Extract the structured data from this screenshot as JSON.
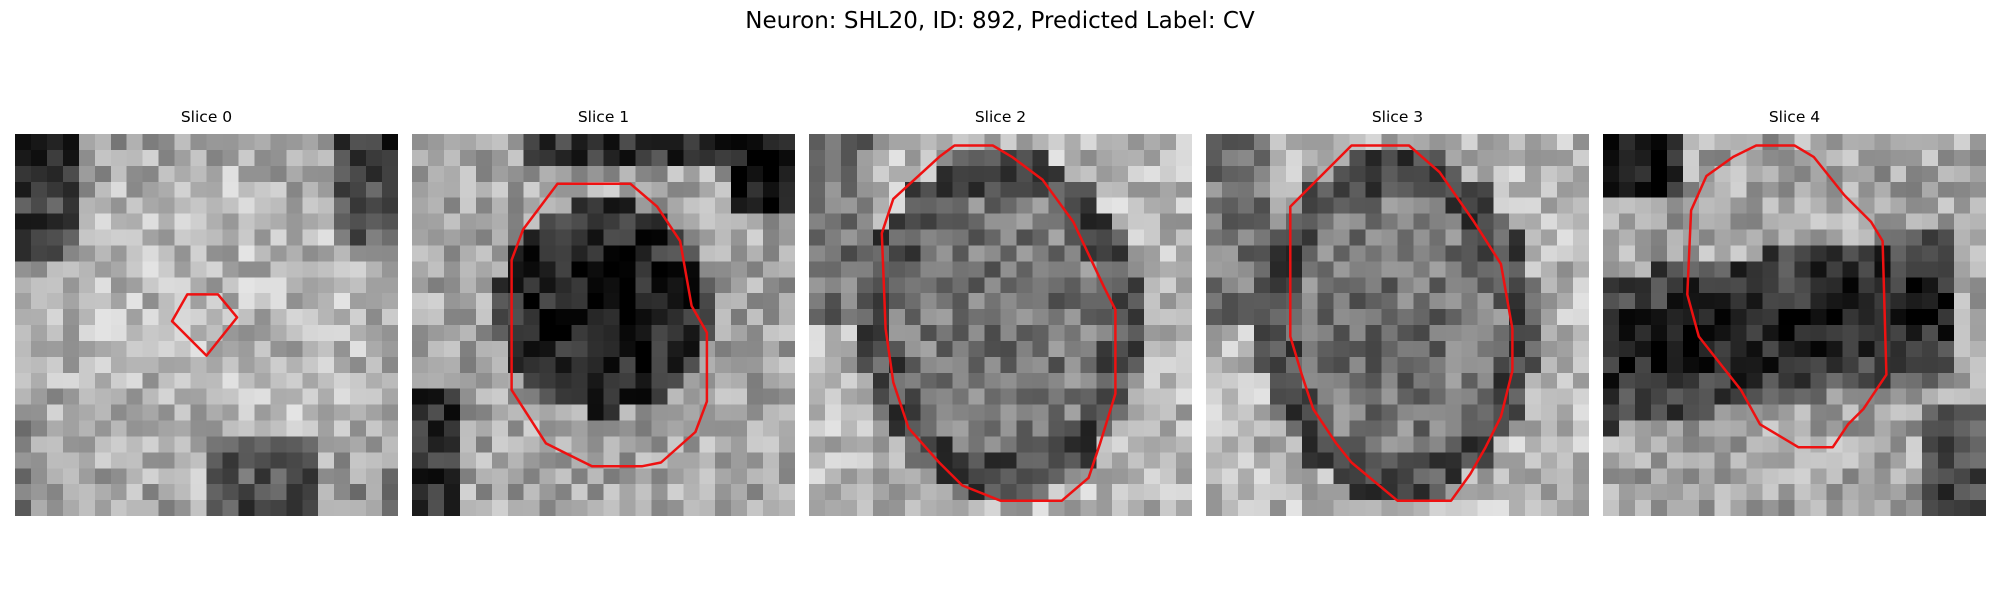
{
  "figure_title": "Neuron: SHL20, ID: 892, Predicted Label: CV",
  "contour_color": "#ee1111",
  "colormap": "gray",
  "slices": [
    {
      "title": "Slice 0",
      "pattern": "bright-blob",
      "seed": 11,
      "contour": [
        [
          0.41,
          0.49
        ],
        [
          0.45,
          0.42
        ],
        [
          0.53,
          0.42
        ],
        [
          0.58,
          0.48
        ],
        [
          0.5,
          0.58
        ],
        [
          0.42,
          0.5
        ]
      ]
    },
    {
      "title": "Slice 1",
      "pattern": "dark-blob",
      "seed": 23,
      "contour": [
        [
          0.29,
          0.25
        ],
        [
          0.38,
          0.13
        ],
        [
          0.57,
          0.13
        ],
        [
          0.64,
          0.19
        ],
        [
          0.7,
          0.28
        ],
        [
          0.73,
          0.45
        ],
        [
          0.77,
          0.52
        ],
        [
          0.77,
          0.7
        ],
        [
          0.74,
          0.78
        ],
        [
          0.65,
          0.86
        ],
        [
          0.6,
          0.87
        ],
        [
          0.47,
          0.87
        ],
        [
          0.41,
          0.84
        ],
        [
          0.35,
          0.81
        ],
        [
          0.26,
          0.67
        ],
        [
          0.26,
          0.33
        ]
      ]
    },
    {
      "title": "Slice 2",
      "pattern": "mid-blob",
      "seed": 37,
      "contour": [
        [
          0.22,
          0.17
        ],
        [
          0.34,
          0.06
        ],
        [
          0.38,
          0.03
        ],
        [
          0.48,
          0.03
        ],
        [
          0.53,
          0.06
        ],
        [
          0.61,
          0.12
        ],
        [
          0.69,
          0.23
        ],
        [
          0.77,
          0.4
        ],
        [
          0.8,
          0.46
        ],
        [
          0.8,
          0.68
        ],
        [
          0.76,
          0.81
        ],
        [
          0.73,
          0.9
        ],
        [
          0.66,
          0.96
        ],
        [
          0.5,
          0.96
        ],
        [
          0.4,
          0.92
        ],
        [
          0.34,
          0.86
        ],
        [
          0.26,
          0.77
        ],
        [
          0.22,
          0.65
        ],
        [
          0.2,
          0.51
        ],
        [
          0.19,
          0.26
        ]
      ]
    },
    {
      "title": "Slice 3",
      "pattern": "mid-blob",
      "seed": 53,
      "contour": [
        [
          0.22,
          0.19
        ],
        [
          0.32,
          0.09
        ],
        [
          0.38,
          0.03
        ],
        [
          0.53,
          0.03
        ],
        [
          0.61,
          0.1
        ],
        [
          0.7,
          0.23
        ],
        [
          0.77,
          0.34
        ],
        [
          0.8,
          0.51
        ],
        [
          0.8,
          0.62
        ],
        [
          0.77,
          0.74
        ],
        [
          0.73,
          0.82
        ],
        [
          0.69,
          0.89
        ],
        [
          0.64,
          0.96
        ],
        [
          0.5,
          0.96
        ],
        [
          0.38,
          0.86
        ],
        [
          0.34,
          0.81
        ],
        [
          0.28,
          0.72
        ],
        [
          0.25,
          0.63
        ],
        [
          0.22,
          0.53
        ],
        [
          0.22,
          0.19
        ]
      ]
    },
    {
      "title": "Slice 4",
      "pattern": "dark-band",
      "seed": 71,
      "contour": [
        [
          0.23,
          0.2
        ],
        [
          0.27,
          0.11
        ],
        [
          0.34,
          0.06
        ],
        [
          0.4,
          0.03
        ],
        [
          0.5,
          0.03
        ],
        [
          0.55,
          0.06
        ],
        [
          0.63,
          0.16
        ],
        [
          0.7,
          0.23
        ],
        [
          0.73,
          0.28
        ],
        [
          0.74,
          0.63
        ],
        [
          0.68,
          0.72
        ],
        [
          0.64,
          0.76
        ],
        [
          0.6,
          0.82
        ],
        [
          0.51,
          0.82
        ],
        [
          0.41,
          0.76
        ],
        [
          0.36,
          0.67
        ],
        [
          0.25,
          0.53
        ],
        [
          0.22,
          0.42
        ]
      ]
    }
  ]
}
